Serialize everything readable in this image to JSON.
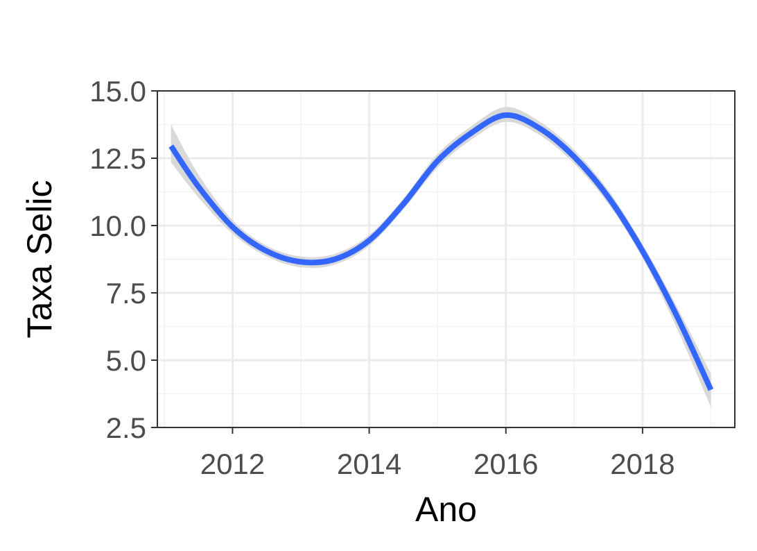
{
  "chart_data": {
    "type": "line",
    "title": "",
    "xlabel": "Ano",
    "ylabel": "Taxa Selic",
    "xlim": [
      2010.9,
      2019.35
    ],
    "ylim": [
      2.5,
      15.0
    ],
    "x_ticks": [
      2012,
      2014,
      2016,
      2018
    ],
    "x_tick_labels": [
      "2012",
      "2014",
      "2016",
      "2018"
    ],
    "y_ticks": [
      2.5,
      5.0,
      7.5,
      10.0,
      12.5,
      15.0
    ],
    "y_tick_labels": [
      "2.5",
      "5.0",
      "7.5",
      "10.0",
      "12.5",
      "15.0"
    ],
    "grid": true,
    "legend": "none",
    "series": [
      {
        "style": "smooth",
        "color": "#3366ff",
        "band_color": "#d9d9d9",
        "x": [
          2011.1,
          2011.5,
          2012.0,
          2012.5,
          2013.0,
          2013.5,
          2014.0,
          2014.5,
          2015.0,
          2015.5,
          2016.0,
          2016.5,
          2017.0,
          2017.5,
          2018.0,
          2018.5,
          2019.0
        ],
        "y": [
          12.95,
          11.45,
          9.95,
          9.05,
          8.65,
          8.75,
          9.45,
          10.8,
          12.4,
          13.45,
          14.1,
          13.6,
          12.55,
          11.05,
          9.05,
          6.65,
          3.9
        ],
        "lower": [
          12.35,
          11.05,
          9.7,
          8.85,
          8.45,
          8.55,
          9.25,
          10.6,
          12.15,
          13.2,
          13.85,
          13.35,
          12.3,
          10.8,
          8.8,
          6.2,
          3.25
        ],
        "upper": [
          13.75,
          11.9,
          10.2,
          9.25,
          8.85,
          8.95,
          9.65,
          11.0,
          12.65,
          13.7,
          14.4,
          13.85,
          12.8,
          11.3,
          9.3,
          7.0,
          4.5
        ]
      }
    ]
  },
  "colors": {
    "panel_background": "#ffffff",
    "major_grid": "#ebebeb",
    "minor_grid": "#f2f2f2",
    "panel_border": "#333333",
    "tick_text": "#4d4d4d",
    "title_text": "#000000"
  }
}
